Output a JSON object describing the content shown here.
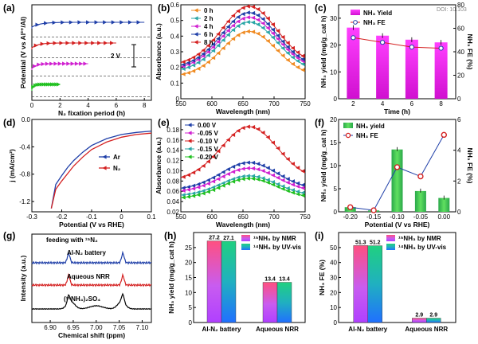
{
  "doi_text": "DOI: 10.103",
  "chart_data": [
    {
      "panel": "(a)",
      "type": "line",
      "xlabel": "N₂ fixation period (h)",
      "ylabel": "Potential (V vs Al³⁺/Al)",
      "xlim": [
        0,
        8.5
      ],
      "xticks": [
        0,
        2,
        4,
        6,
        8
      ],
      "scale_label": "2 V",
      "colors": [
        "#1f3fa8",
        "#d42020",
        "#d020d0",
        "#20c020"
      ],
      "series": [
        {
          "x_end": 8,
          "level": 1,
          "dashed": 1.55
        },
        {
          "x_end": 6,
          "level": 2,
          "dashed": 2.55
        },
        {
          "x_end": 4,
          "level": 3,
          "dashed": 3.45
        },
        {
          "x_end": 2,
          "level": 4,
          "dashed": 4.45
        }
      ]
    },
    {
      "panel": "(b)",
      "type": "line",
      "xlabel": "Wavelength (nm)",
      "ylabel": "Absorbance (a.u.)",
      "xlim": [
        550,
        750
      ],
      "ylim": [
        0,
        0.6
      ],
      "xticks": [
        550,
        600,
        650,
        700,
        750
      ],
      "yticks": [
        0.0,
        0.1,
        0.2,
        0.3,
        0.4,
        0.5,
        0.6
      ],
      "legend_position": "top-left",
      "series": [
        {
          "name": "0 h",
          "color": "#f08a20",
          "peak": 0.43,
          "base": 0.16,
          "edge": 0.12
        },
        {
          "name": "2 h",
          "color": "#2aa6a6",
          "peak": 0.49,
          "base": 0.2,
          "edge": 0.14
        },
        {
          "name": "4 h",
          "color": "#d020d0",
          "peak": 0.52,
          "base": 0.22,
          "edge": 0.15
        },
        {
          "name": "6 h",
          "color": "#1f3fa8",
          "peak": 0.55,
          "base": 0.23,
          "edge": 0.16
        },
        {
          "name": "8 h",
          "color": "#d42020",
          "peak": 0.59,
          "base": 0.25,
          "edge": 0.17
        }
      ]
    },
    {
      "panel": "(c)",
      "type": "bar",
      "xlabel": "Time (h)",
      "ylabel": "NH₃ yield (mg/g_cat h)",
      "ylabel_right": "NH₃ FE (%)",
      "categories": [
        "2",
        "4",
        "6",
        "8"
      ],
      "ylim": [
        0,
        35
      ],
      "yticks": [
        0,
        10,
        20,
        30
      ],
      "y2lim": [
        0,
        80
      ],
      "y2ticks": [
        0,
        20,
        40,
        60,
        80
      ],
      "series": [
        {
          "name": "NH₃ Yield",
          "values": [
            26.5,
            23.5,
            22,
            21
          ]
        },
        {
          "name": "NH₃ FE",
          "values": [
            52,
            48,
            44,
            43
          ]
        }
      ]
    },
    {
      "panel": "(d)",
      "type": "line",
      "xlabel": "Potential (V vs RHE)",
      "ylabel": "j (mA/cm²)",
      "xlim": [
        -0.3,
        0.1
      ],
      "ylim": [
        -1.35,
        0
      ],
      "xticks": [
        -0.3,
        -0.2,
        -0.1,
        0.0,
        0.1
      ],
      "yticks": [
        -1.2,
        -0.8,
        -0.4,
        0.0
      ],
      "series": [
        {
          "name": "Ar",
          "color": "#1f3fa8",
          "x": [
            -0.235,
            -0.22,
            -0.2,
            -0.18,
            -0.16,
            -0.13,
            -0.1,
            -0.05,
            0.0,
            0.05,
            0.1
          ],
          "y": [
            -1.3,
            -0.95,
            -0.82,
            -0.7,
            -0.6,
            -0.48,
            -0.38,
            -0.28,
            -0.22,
            -0.19,
            -0.17
          ]
        },
        {
          "name": "N₂",
          "color": "#d42020",
          "x": [
            -0.235,
            -0.22,
            -0.2,
            -0.18,
            -0.16,
            -0.13,
            -0.1,
            -0.05,
            0.0,
            0.05,
            0.1
          ],
          "y": [
            -1.3,
            -1.02,
            -0.9,
            -0.79,
            -0.68,
            -0.55,
            -0.44,
            -0.33,
            -0.26,
            -0.22,
            -0.2
          ]
        }
      ]
    },
    {
      "panel": "(e)",
      "type": "line",
      "xlabel": "Wavelength (nm)",
      "ylabel": "Absorbance (a.u.)",
      "xlim": [
        550,
        750
      ],
      "ylim": [
        0.02,
        0.2
      ],
      "xticks": [
        550,
        600,
        650,
        700,
        750
      ],
      "yticks": [
        0.02,
        0.04,
        0.06,
        0.08,
        0.1,
        0.12,
        0.14,
        0.16,
        0.18
      ],
      "legend_position": "top-left",
      "series": [
        {
          "name": "0.00 V",
          "color": "#1f3fa8",
          "peak": 0.116,
          "base": 0.07,
          "edge": 0.055
        },
        {
          "name": "-0.05 V",
          "color": "#d020d0",
          "peak": 0.105,
          "base": 0.065,
          "edge": 0.05
        },
        {
          "name": "-0.10 V",
          "color": "#d42020",
          "peak": 0.186,
          "base": 0.095,
          "edge": 0.065
        },
        {
          "name": "-0.15 V",
          "color": "#2aa6a6",
          "peak": 0.09,
          "base": 0.055,
          "edge": 0.045
        },
        {
          "name": "-0.20 V",
          "color": "#20c020",
          "peak": 0.085,
          "base": 0.05,
          "edge": 0.04
        }
      ]
    },
    {
      "panel": "(f)",
      "type": "bar",
      "xlabel": "Potential (V vs RHE)",
      "ylabel": "NH₃ yield (mg/g_cat h)",
      "ylabel_right": "NH₃ FE (%)",
      "categories": [
        "-0.20",
        "-0.15",
        "-0.10",
        "-0.05",
        "0.00"
      ],
      "ylim": [
        0,
        20
      ],
      "yticks": [
        0,
        5,
        10,
        15,
        20
      ],
      "y2lim": [
        0,
        6
      ],
      "y2ticks": [
        0,
        2,
        4,
        6
      ],
      "series": [
        {
          "name": "NH₃ yield",
          "values": [
            1.0,
            0.3,
            13.5,
            4.5,
            3.0
          ]
        },
        {
          "name": "NH₃ FE",
          "values": [
            0.3,
            0.1,
            2.9,
            2.3,
            5.0
          ]
        }
      ]
    },
    {
      "panel": "(g)",
      "type": "line",
      "title": "feeding with ¹⁵N₂",
      "xlabel": "Chemical shift (ppm)",
      "ylabel": "Intensity (a.u.)",
      "xlim": [
        6.86,
        7.12
      ],
      "xticks": [
        6.9,
        6.95,
        7.0,
        7.05,
        7.1
      ],
      "series": [
        {
          "name": "Al-N₂ battery",
          "color": "#1f3fa8"
        },
        {
          "name": "Aqueous NRR",
          "color": "#d42020"
        },
        {
          "name": "(¹⁵NH₄)₂SO₄",
          "color": "#000000"
        }
      ]
    },
    {
      "panel": "(h)",
      "type": "bar",
      "ylabel": "NH₃ yield (mg/g_cat h)",
      "categories": [
        "Al-N₂ battery",
        "Aqueous NRR"
      ],
      "ylim": [
        0,
        30
      ],
      "yticks": [
        0,
        5,
        10,
        15,
        20,
        25
      ],
      "series": [
        {
          "name": "¹⁵NH₃ by NMR",
          "values": [
            27.2,
            13.4
          ]
        },
        {
          "name": "¹⁴NH₃ by UV-vis",
          "values": [
            27.1,
            13.4
          ]
        }
      ]
    },
    {
      "panel": "(i)",
      "type": "bar",
      "ylabel": "NH₃ FE (%)",
      "categories": [
        "Al-N₂ battery",
        "Aqueous NRR"
      ],
      "ylim": [
        0,
        60
      ],
      "yticks": [
        0,
        10,
        20,
        30,
        40,
        50
      ],
      "series": [
        {
          "name": "¹⁵NH₃ by NMR",
          "values": [
            51.3,
            2.9
          ]
        },
        {
          "name": "¹⁴NH₃ by UV-vis",
          "values": [
            51.2,
            2.9
          ]
        }
      ]
    }
  ]
}
